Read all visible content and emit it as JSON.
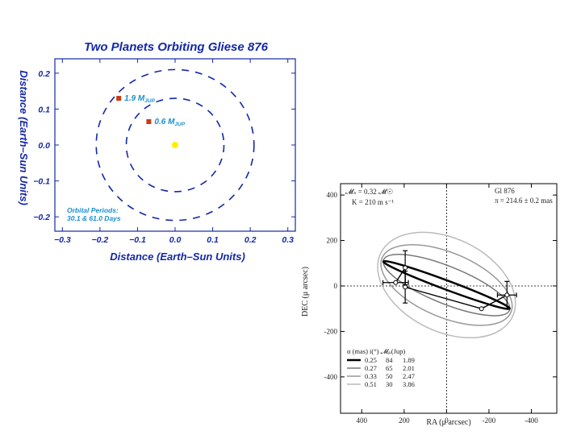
{
  "chart_data": [
    {
      "type": "scatter",
      "title": "Two Planets Orbiting Gliese 876",
      "xlabel": "Distance (Earth–Sun Units)",
      "ylabel": "Distance (Earth–Sun Units)",
      "xlim": [
        -0.32,
        0.32
      ],
      "ylim": [
        -0.24,
        0.24
      ],
      "xticks": [
        "−0.3",
        "−0.2",
        "−0.1",
        "0.0",
        "0.1",
        "0.2",
        "0.3"
      ],
      "xtick_values": [
        -0.3,
        -0.2,
        -0.1,
        0.0,
        0.1,
        0.2,
        0.3
      ],
      "yticks": [
        "0.2",
        "0.1",
        "0.0",
        "−0.1",
        "−0.2"
      ],
      "ytick_values": [
        0.2,
        0.1,
        0.0,
        -0.1,
        -0.2
      ],
      "orbits": [
        {
          "name": "inner",
          "radius": 0.13
        },
        {
          "name": "outer",
          "radius": 0.21
        }
      ],
      "star": {
        "x": 0.0,
        "y": 0.0
      },
      "planets": [
        {
          "x": -0.15,
          "y": 0.13,
          "label": "1.9 M",
          "sub": "JUP"
        },
        {
          "x": -0.07,
          "y": 0.065,
          "label": "0.6 M",
          "sub": "JUP"
        }
      ],
      "note_line1": "Orbital Periods:",
      "note_line2": "30.1 & 61.0 Days",
      "colors": {
        "axis": "#1428a8",
        "star": "#ffee00",
        "planet": "#c83a14",
        "note": "#1a8fd0"
      }
    },
    {
      "type": "line",
      "xlabel": "RA (μ arcsec)",
      "ylabel": "DEC (μ arcsec)",
      "xlim": [
        500,
        -520
      ],
      "ylim": [
        -560,
        450
      ],
      "xticks": [
        "400",
        "200",
        "0",
        "-200",
        "-400"
      ],
      "xtick_values": [
        400,
        200,
        0,
        -200,
        -400
      ],
      "yticks": [
        "400",
        "200",
        "0",
        "-200",
        "-400"
      ],
      "ytick_values": [
        400,
        200,
        0,
        -200,
        -400
      ],
      "header_left_1": "𝓜ₛ = 0.32 𝓜☉",
      "header_left_2": "K = 210 m s⁻¹",
      "header_right_1": "Gl 876",
      "header_right_2": "π = 214.6 ± 0.2 mas",
      "ellipses": [
        {
          "alpha": "0.25",
          "i": "84",
          "mass": "1.89",
          "cx": 0,
          "cy": 4,
          "a": 318,
          "b": 20,
          "angle": -20.5,
          "color": "#000000",
          "width": 2.5
        },
        {
          "alpha": "0.27",
          "i": "65",
          "mass": "2.01",
          "cx": 0,
          "cy": 4,
          "a": 320,
          "b": 82,
          "angle": -22,
          "color": "#777777",
          "width": 1.5
        },
        {
          "alpha": "0.33",
          "i": "50",
          "mass": "2.47",
          "cx": 0,
          "cy": 4,
          "a": 330,
          "b": 142,
          "angle": -23,
          "color": "#999999",
          "width": 1.5
        },
        {
          "alpha": "0.51",
          "i": "30",
          "mass": "3.86",
          "cx": 0,
          "cy": 4,
          "a": 345,
          "b": 205,
          "angle": -26,
          "color": "#bbbbbb",
          "width": 1.5
        }
      ],
      "data_points": [
        {
          "x": 240,
          "y": 15,
          "xerr": 60,
          "yerr": 0
        },
        {
          "x": 195,
          "y": 80,
          "xerr": 0,
          "yerr": 75
        },
        {
          "x": 195,
          "y": -5,
          "xerr": 0,
          "yerr": 70
        },
        {
          "x": -165,
          "y": -100,
          "xerr": 0,
          "yerr": 0
        },
        {
          "x": -285,
          "y": -40,
          "xerr": 45,
          "yerr": 60
        }
      ],
      "legend_header": "α (mas)   i(°)   𝓜ₚ(Jup)",
      "legend_position": "lower-left",
      "grid": false,
      "crosshair_at_zero": true
    }
  ]
}
